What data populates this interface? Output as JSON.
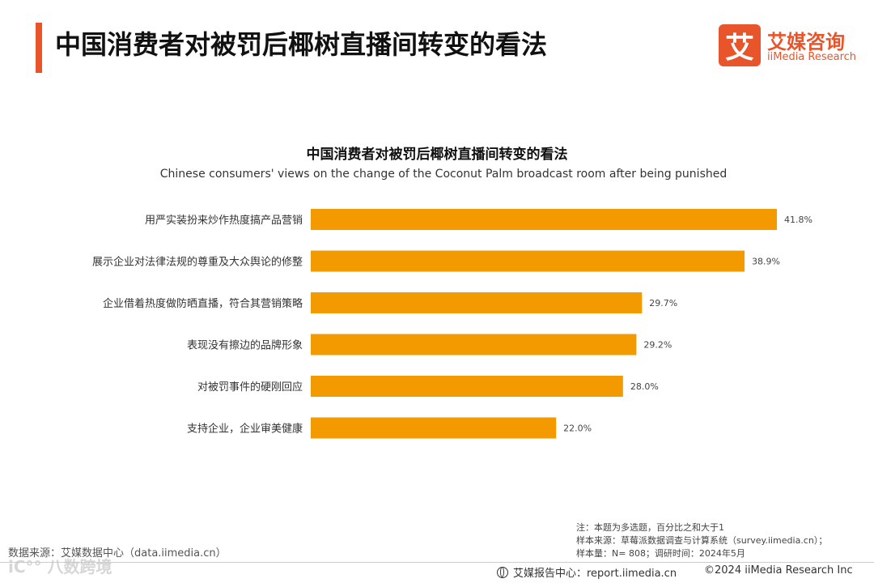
{
  "header": {
    "title": "中国消费者对被罚后椰树直播间转变的看法",
    "logo_mark": "艾",
    "logo_cn": "艾媒咨询",
    "logo_en": "iiMedia Research"
  },
  "chart_data": {
    "type": "bar",
    "orientation": "horizontal",
    "title": "中国消费者对被罚后椰树直播间转变的看法",
    "subtitle": "Chinese consumers' views on the change of the Coconut Palm broadcast room after being punished",
    "categories": [
      "用严实装扮来炒作热度搞产品营销",
      "展示企业对法律法规的尊重及大众舆论的修整",
      "企业借着热度做防晒直播，符合其营销策略",
      "表现没有擦边的品牌形象",
      "对被罚事件的硬刚回应",
      "支持企业，企业审美健康"
    ],
    "values": [
      41.8,
      38.9,
      29.7,
      29.2,
      28.0,
      22.0
    ],
    "value_labels": [
      "41.8%",
      "38.9%",
      "29.7%",
      "29.2%",
      "28.0%",
      "22.0%"
    ],
    "unit": "%",
    "xlim": [
      0,
      41.8
    ],
    "grid": false,
    "bar_color": "#f39a00"
  },
  "notes": {
    "line1": "注：本题为多选题，百分比之和大于1",
    "line2": "样本来源：草莓派数据调查与计算系统（survey.iimedia.cn）；",
    "line3": "样本量：N= 808；调研时间：2024年5月"
  },
  "footer": {
    "source": "数据来源：艾媒数据中心（data.iimedia.cn）",
    "watermark": "iC°° 八数跨境",
    "report": "艾媒报告中心：report.iimedia.cn",
    "copyright": "©2024  iiMedia Research  Inc"
  },
  "colors": {
    "accent": "#e8552b",
    "bar": "#f39a00"
  }
}
